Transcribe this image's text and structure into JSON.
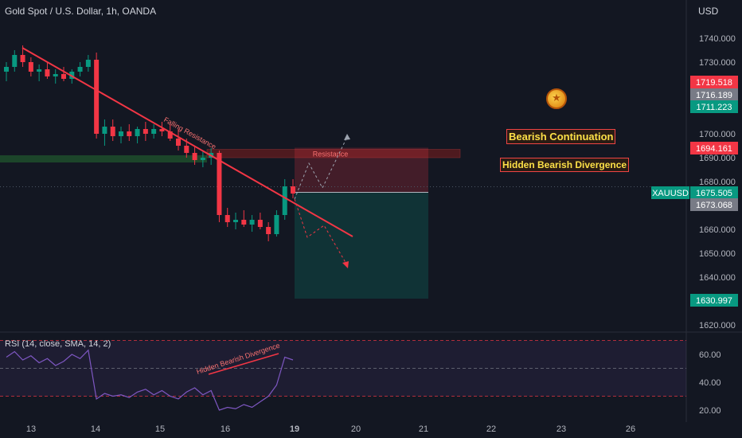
{
  "header": {
    "title": "Gold Spot / U.S. Dollar, 1h, OANDA",
    "currency": "USD"
  },
  "annotations": {
    "bearish_continuation": "Bearish Continuation",
    "hidden_divergence": "Hidden Bearish Divergence",
    "falling_resistance": "Falling Resistance",
    "resistance": "Resistance",
    "rsi_divergence": "Hidden Bearish Divergence",
    "coin_icon": "gold-coin-icon"
  },
  "price_tags": [
    {
      "value": "1719.518",
      "color": "#f23645"
    },
    {
      "value": "1716.189",
      "color": "#787b86"
    },
    {
      "value": "1711.223",
      "color": "#089981"
    },
    {
      "value": "1694.161",
      "color": "#f23645"
    },
    {
      "value": "1675.505",
      "color": "#089981"
    },
    {
      "value": "1673.068",
      "color": "#787b86"
    },
    {
      "value": "1630.997",
      "color": "#089981"
    }
  ],
  "symbol_tag": "XAUUSD",
  "rsi": {
    "label": "RSI (14, close, SMA, 14, 2)",
    "ticks": [
      "60.00",
      "40.00",
      "20.00"
    ],
    "levels": [
      70,
      50,
      30
    ]
  },
  "chart_data": {
    "type": "candlestick",
    "title": "Gold Spot / U.S. Dollar, 1h, OANDA",
    "y_ticks": [
      1740,
      1730,
      1700,
      1690,
      1680,
      1660,
      1650,
      1640,
      1620
    ],
    "y_tick_labels": [
      "1740.000",
      "1730.000",
      "1700.000",
      "1690.000",
      "1680.000",
      "1660.000",
      "1650.000",
      "1640.000",
      "1620.000"
    ],
    "x_ticks": [
      "13",
      "14",
      "15",
      "16",
      "19",
      "20",
      "21",
      "22",
      "23",
      "26"
    ],
    "ohlc": [
      [
        1726,
        1730,
        1722,
        1728
      ],
      [
        1728,
        1735,
        1726,
        1733
      ],
      [
        1733,
        1737,
        1728,
        1730
      ],
      [
        1730,
        1732,
        1724,
        1726
      ],
      [
        1726,
        1729,
        1722,
        1727
      ],
      [
        1727,
        1730,
        1723,
        1724
      ],
      [
        1724,
        1727,
        1721,
        1725
      ],
      [
        1725,
        1728,
        1722,
        1723
      ],
      [
        1723,
        1727,
        1721,
        1726
      ],
      [
        1726,
        1730,
        1724,
        1728
      ],
      [
        1728,
        1733,
        1726,
        1731
      ],
      [
        1731,
        1734,
        1698,
        1700
      ],
      [
        1700,
        1706,
        1695,
        1703
      ],
      [
        1703,
        1706,
        1697,
        1699
      ],
      [
        1699,
        1703,
        1696,
        1701
      ],
      [
        1701,
        1704,
        1697,
        1699
      ],
      [
        1699,
        1703,
        1696,
        1702
      ],
      [
        1702,
        1705,
        1697,
        1700
      ],
      [
        1700,
        1704,
        1698,
        1702
      ],
      [
        1702,
        1705,
        1699,
        1701
      ],
      [
        1701,
        1704,
        1697,
        1698
      ],
      [
        1698,
        1702,
        1693,
        1695
      ],
      [
        1695,
        1698,
        1690,
        1692
      ],
      [
        1692,
        1695,
        1687,
        1689
      ],
      [
        1689,
        1693,
        1686,
        1690
      ],
      [
        1690,
        1694,
        1687,
        1692
      ],
      [
        1692,
        1693,
        1663,
        1666
      ],
      [
        1666,
        1669,
        1661,
        1663
      ],
      [
        1663,
        1667,
        1660,
        1664
      ],
      [
        1664,
        1668,
        1661,
        1662
      ],
      [
        1662,
        1666,
        1659,
        1664
      ],
      [
        1664,
        1667,
        1660,
        1661
      ],
      [
        1661,
        1663,
        1655,
        1658
      ],
      [
        1658,
        1668,
        1657,
        1666
      ],
      [
        1666,
        1681,
        1664,
        1678
      ],
      [
        1678,
        1681,
        1673,
        1675
      ]
    ],
    "resistance_zone": [
      1690,
      1694.161
    ],
    "support_zone": [
      1689,
      1691
    ],
    "trade_entry": 1675.505,
    "trade_target": 1630.997,
    "trade_stop": 1694.161,
    "rsi_values": [
      58,
      62,
      56,
      59,
      54,
      57,
      52,
      55,
      60,
      57,
      63,
      28,
      32,
      30,
      31,
      29,
      33,
      35,
      31,
      34,
      30,
      28,
      33,
      36,
      31,
      34,
      20,
      22,
      21,
      24,
      22,
      26,
      30,
      38,
      58,
      56
    ],
    "ylim": [
      1615,
      1750
    ]
  }
}
